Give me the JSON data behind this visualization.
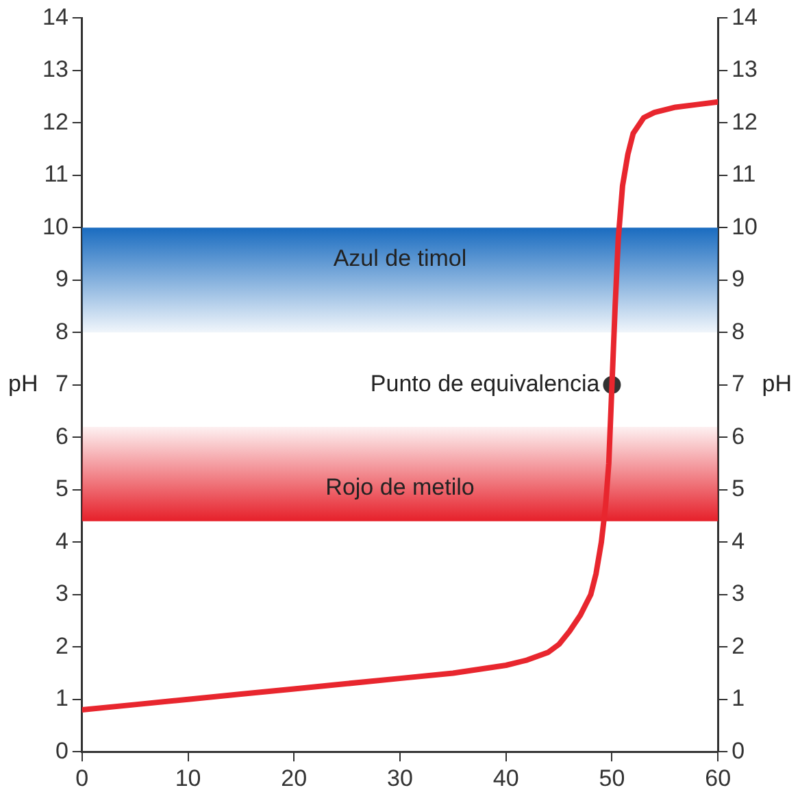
{
  "chart_data": {
    "type": "line",
    "ylabel": "pH",
    "y2label": "pH",
    "xlim": [
      0,
      60
    ],
    "xticks": [
      0,
      10,
      20,
      30,
      40,
      50,
      60
    ],
    "ylim": [
      0,
      14
    ],
    "yticks": [
      0,
      1,
      2,
      3,
      4,
      5,
      6,
      7,
      8,
      9,
      10,
      11,
      12,
      13,
      14
    ],
    "y2lim": [
      0,
      14
    ],
    "y2ticks": [
      0,
      1,
      2,
      3,
      4,
      5,
      6,
      7,
      8,
      9,
      10,
      11,
      12,
      13,
      14
    ],
    "grid": false,
    "legend": false,
    "bands": [
      {
        "axis": "y",
        "from": 8,
        "to": 10,
        "label": "Azul de timol",
        "color": "#1a6cc0"
      },
      {
        "axis": "y",
        "from": 4.4,
        "to": 6.2,
        "label": "Rojo de metilo",
        "color": "#e6202a"
      }
    ],
    "annotations": [
      {
        "text": "Punto de equivalencia",
        "x": 50,
        "y": 7
      }
    ],
    "series": [
      {
        "color": "#e8262e",
        "x": [
          0,
          5,
          10,
          15,
          20,
          25,
          30,
          35,
          40,
          42,
          44,
          45,
          46,
          47,
          48,
          48.5,
          49,
          49.4,
          49.7,
          50,
          50.3,
          50.6,
          51,
          51.5,
          52,
          53,
          54,
          56,
          58,
          60
        ],
        "values": [
          0.8,
          0.9,
          1.0,
          1.1,
          1.2,
          1.3,
          1.4,
          1.5,
          1.65,
          1.75,
          1.9,
          2.05,
          2.3,
          2.6,
          3.0,
          3.4,
          4.0,
          4.7,
          5.5,
          7,
          8.5,
          9.8,
          10.8,
          11.4,
          11.8,
          12.1,
          12.2,
          12.3,
          12.35,
          12.4
        ]
      },
      {
        "type": "scatter",
        "color": "#333333",
        "marker": "circle",
        "x": [
          50
        ],
        "values": [
          7
        ]
      }
    ]
  }
}
